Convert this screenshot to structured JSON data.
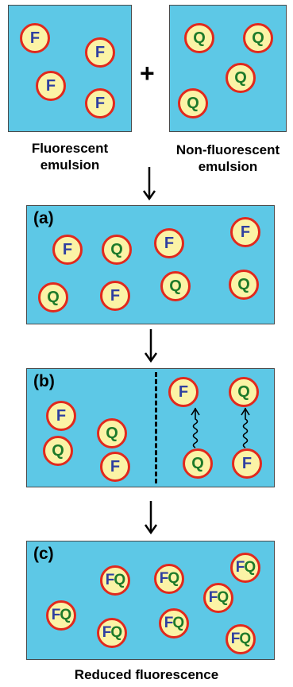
{
  "top": {
    "plus": "+",
    "left_caption_line1": "Fluorescent",
    "left_caption_line2": "emulsion",
    "right_caption_line1": "Non-fluorescent",
    "right_caption_line2": "emulsion"
  },
  "panels": {
    "a_label": "(a)",
    "b_label": "(b)",
    "c_label": "(c)"
  },
  "drop_letters": {
    "F": "F",
    "Q": "Q"
  },
  "bottom_caption": "Reduced fluorescence",
  "colors": {
    "box_fill": "#5dc8e6",
    "droplet_fill": "#fbf3a6",
    "droplet_border": "#e1291d",
    "fluorophore_text": "#2f3fa0",
    "quencher_text": "#1e7a2a"
  }
}
